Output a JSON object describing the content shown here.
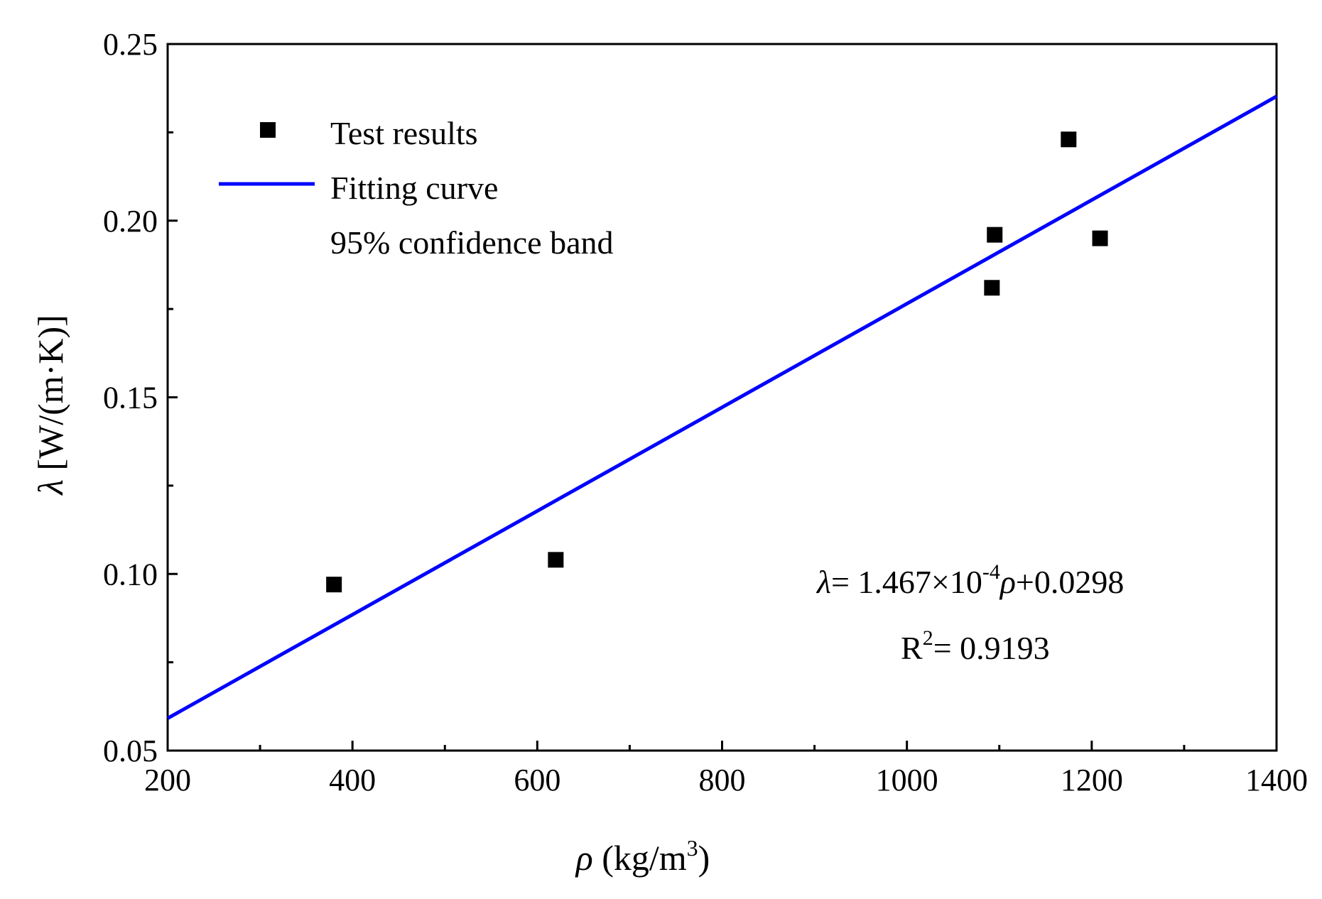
{
  "chart_data": {
    "type": "scatter",
    "title": "",
    "xlim": [
      200,
      1400
    ],
    "ylim": [
      0.05,
      0.25
    ],
    "x_ticks": [
      200,
      400,
      600,
      800,
      1000,
      1200,
      1400
    ],
    "x_tick_labels": [
      "200",
      "400",
      "600",
      "800",
      "1000",
      "1200",
      "1400"
    ],
    "x_minor_ticks": [
      300,
      500,
      700,
      900,
      1100,
      1300
    ],
    "y_ticks": [
      0.05,
      0.1,
      0.15,
      0.2,
      0.25
    ],
    "y_tick_labels": [
      "0.05",
      "0.10",
      "0.15",
      "0.20",
      "0.25"
    ],
    "y_minor_ticks": [
      0.075,
      0.125,
      0.175,
      0.225
    ],
    "grid": false,
    "xlabel": {
      "symbol": "ρ",
      "unit": " (kg/m",
      "sup": "3",
      "close": ")"
    },
    "ylabel": {
      "symbol": "λ",
      "unit": " [W/(m·K)]"
    },
    "series": [
      {
        "name": "Test results",
        "kind": "scatter",
        "marker": "square",
        "color": "#000000",
        "points": [
          {
            "x": 380,
            "y": 0.097
          },
          {
            "x": 620,
            "y": 0.104
          },
          {
            "x": 1092,
            "y": 0.181
          },
          {
            "x": 1095,
            "y": 0.196
          },
          {
            "x": 1175,
            "y": 0.223
          },
          {
            "x": 1209,
            "y": 0.195
          }
        ]
      },
      {
        "name": "Fitting curve",
        "kind": "line",
        "color": "#0000ff",
        "slope": 0.0001467,
        "intercept": 0.0298,
        "x_range": [
          200,
          1400
        ]
      }
    ],
    "legend": {
      "position": "top-left",
      "entries": [
        {
          "label": "Test results",
          "marker": "square"
        },
        {
          "label": "Fitting curve",
          "marker": "line"
        },
        {
          "label": "95% confidence band",
          "marker": "none"
        }
      ]
    },
    "annotation": {
      "equation": {
        "lhs": "λ",
        "part1": "= 1.467×10",
        "exp": "-4",
        "var": "ρ",
        "part2": "+0.0298"
      },
      "r2": {
        "base": "R",
        "sup": "2",
        "rest": "= 0.9193"
      }
    }
  }
}
